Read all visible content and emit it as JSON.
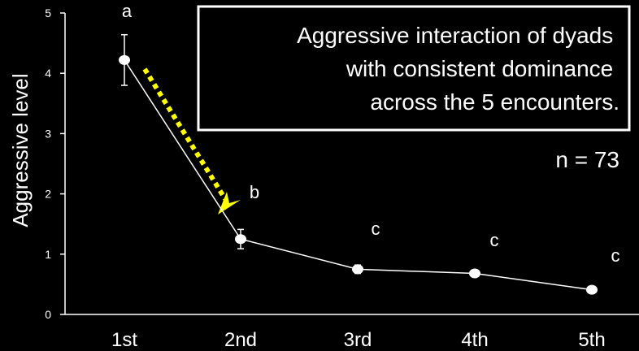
{
  "chart_data": {
    "type": "line",
    "title": "Aggressive interaction of dyads with consistent dominance across the 5 encounters.",
    "title_lines": [
      "Aggressive interaction of dyads",
      "with consistent dominance",
      "across the 5 encounters."
    ],
    "ylabel": "Aggressive level",
    "xlabel": "",
    "ylim": [
      0,
      5
    ],
    "yticks": [
      0,
      1,
      2,
      3,
      4,
      5
    ],
    "categories": [
      "1st",
      "2nd",
      "3rd",
      "4th",
      "5th"
    ],
    "series": [
      {
        "values": [
          4.22,
          1.25,
          0.75,
          0.68,
          0.41
        ],
        "error": [
          0.42,
          0.16,
          0.07,
          0.05,
          0.03
        ],
        "color": "#ffffff"
      }
    ],
    "significance_letters": [
      "a",
      "b",
      "c",
      "c",
      "c"
    ],
    "sample_size": "n = 73",
    "grid": false,
    "legend": "none",
    "annotation_arrow": {
      "from": "1st",
      "to": "2nd",
      "color": "#ffff00",
      "style": "dotted"
    }
  }
}
